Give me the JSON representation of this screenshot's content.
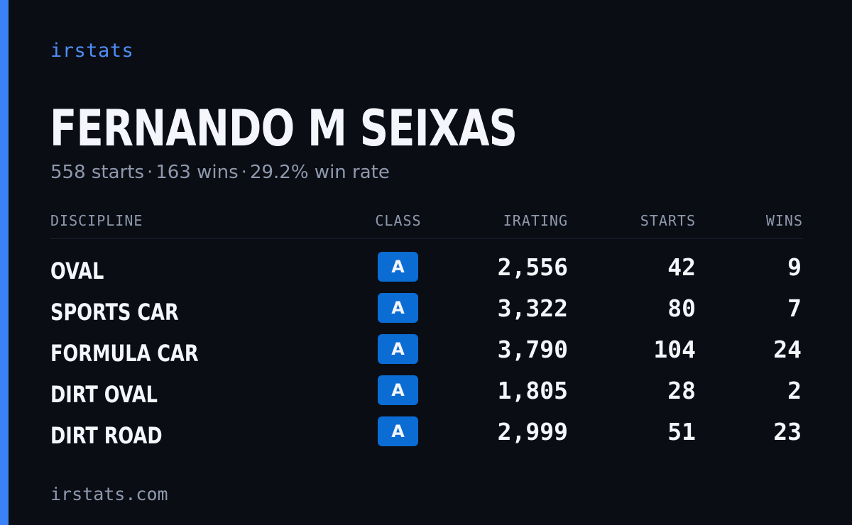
{
  "brand": "irstats",
  "driver": {
    "name": "FERNANDO M SEIXAS"
  },
  "summary": {
    "starts": "558 starts",
    "wins": "163 wins",
    "win_rate": "29.2% win rate",
    "separator": "·"
  },
  "table": {
    "headers": {
      "discipline": "DISCIPLINE",
      "class": "CLASS",
      "irating": "IRATING",
      "starts": "STARTS",
      "wins": "WINS"
    },
    "rows": [
      {
        "discipline": "OVAL",
        "class": "A",
        "irating": "2,556",
        "starts": "42",
        "wins": "9"
      },
      {
        "discipline": "SPORTS CAR",
        "class": "A",
        "irating": "3,322",
        "starts": "80",
        "wins": "7"
      },
      {
        "discipline": "FORMULA CAR",
        "class": "A",
        "irating": "3,790",
        "starts": "104",
        "wins": "24"
      },
      {
        "discipline": "DIRT OVAL",
        "class": "A",
        "irating": "1,805",
        "starts": "28",
        "wins": "2"
      },
      {
        "discipline": "DIRT ROAD",
        "class": "A",
        "irating": "2,999",
        "starts": "51",
        "wins": "23"
      }
    ]
  },
  "footer": {
    "url": "irstats.com"
  },
  "colors": {
    "background": "#0a0d14",
    "accent": "#3b82f6",
    "badge": "#0b6cd4",
    "text": "#f4f6fb",
    "muted": "#8f99ad"
  }
}
